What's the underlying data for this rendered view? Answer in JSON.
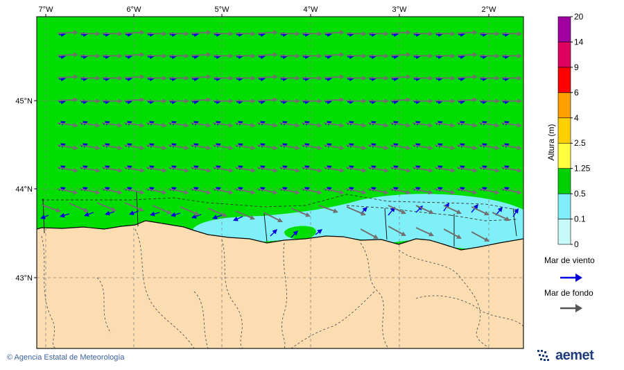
{
  "map": {
    "lon_ticks": [
      "7°W",
      "6°W",
      "5°W",
      "4°W",
      "3°W",
      "2°W"
    ],
    "lat_ticks": [
      "45°N",
      "44°N",
      "43°N"
    ],
    "bounds": {
      "lon_min": -7.1,
      "lon_max": -1.6,
      "lat_min": 42.25,
      "lat_max": 46.0
    },
    "colors": {
      "land": "#fbddb1",
      "sea_05_125": "#00dd00",
      "sea_01_05": "#80f0f8",
      "wind_sea_arrow": "#0000dd",
      "swell_arrow": "#707070"
    }
  },
  "colorbar": {
    "title": "Altura (m)",
    "levels": [
      "0",
      "0.1",
      "0.5",
      "1.25",
      "2.5",
      "4",
      "6",
      "9",
      "14",
      "20"
    ],
    "colors": [
      "#c8fafa",
      "#80eef8",
      "#00d000",
      "#ffff40",
      "#ffd000",
      "#ffa000",
      "#ff0000",
      "#e00060",
      "#a000a0"
    ]
  },
  "legend": {
    "wind_sea_label": "Mar de viento",
    "swell_label": "Mar de fondo",
    "wind_sea_icon": "blue-arrow-icon",
    "swell_icon": "gray-arrow-icon"
  },
  "footer": {
    "credit": "© Agencia Estatal de Meteorología",
    "brand": "aemet",
    "brand_icon": "aemet-logo-icon"
  }
}
